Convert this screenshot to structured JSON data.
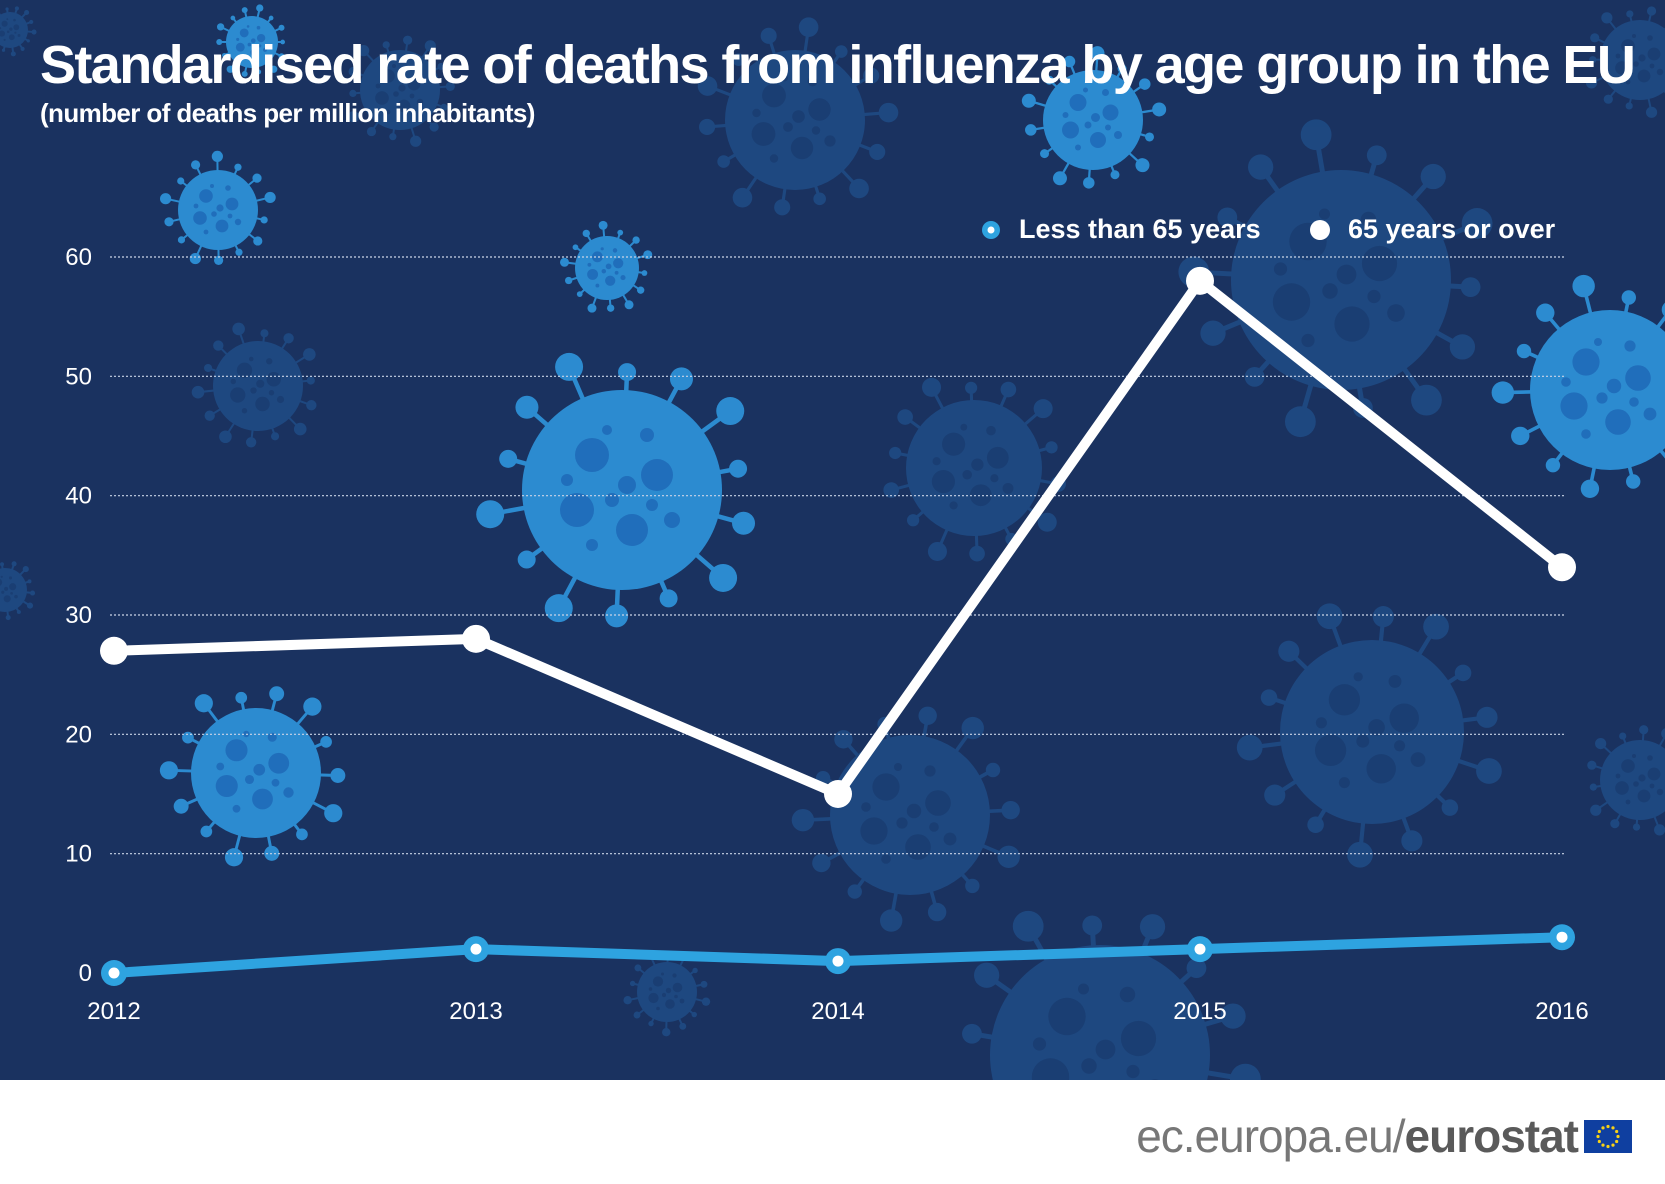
{
  "colors": {
    "background": "#1a3260",
    "virus_light": "#2e90d6",
    "virus_dark": "#1f4c86",
    "series_under_65": "#2ea3e0",
    "series_65_over": "#ffffff",
    "eu_flag": "#0f3fa0",
    "eu_stars": "#f7d117"
  },
  "footer": {
    "domain": "ec.europa.eu/",
    "brand": "eurostat",
    "flag_icon": "eu-flag-icon"
  },
  "chart_data": {
    "type": "line",
    "title": "Standardised rate of deaths from influenza by age group in the EU",
    "subtitle": "(number of deaths per million inhabitants)",
    "xlabel": "",
    "ylabel": "",
    "x": [
      "2012",
      "2013",
      "2014",
      "2015",
      "2016"
    ],
    "ylim": [
      0,
      60
    ],
    "yticks": [
      0,
      10,
      20,
      30,
      40,
      50,
      60
    ],
    "grid": true,
    "legend_position": "top-right",
    "series": [
      {
        "name": "Less than 65 years",
        "values": [
          0,
          2,
          1,
          2,
          3
        ]
      },
      {
        "name": "65 years or over",
        "values": [
          27,
          28,
          15,
          58,
          34
        ]
      }
    ]
  }
}
